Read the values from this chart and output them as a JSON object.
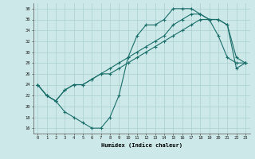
{
  "xlabel": "Humidex (Indice chaleur)",
  "xlim": [
    -0.5,
    23.5
  ],
  "ylim": [
    15,
    39
  ],
  "yticks": [
    16,
    18,
    20,
    22,
    24,
    26,
    28,
    30,
    32,
    34,
    36,
    38
  ],
  "xticks": [
    0,
    1,
    2,
    3,
    4,
    5,
    6,
    7,
    8,
    9,
    10,
    11,
    12,
    13,
    14,
    15,
    16,
    17,
    18,
    19,
    20,
    21,
    22,
    23
  ],
  "bg_color": "#cce8e8",
  "line_color": "#1a6e6a",
  "grid_color": "#aacfcf",
  "line1_x": [
    0,
    1,
    2,
    3,
    4,
    5,
    6,
    7,
    8,
    9,
    10,
    11,
    12,
    13,
    14,
    15,
    16,
    17,
    18,
    19,
    20,
    21,
    22,
    23
  ],
  "line1_y": [
    24,
    22,
    21,
    19,
    18,
    17,
    16,
    16,
    18,
    22,
    29,
    33,
    35,
    35,
    36,
    38,
    38,
    38,
    37,
    36,
    33,
    29,
    28,
    28
  ],
  "line2_x": [
    0,
    1,
    2,
    3,
    4,
    5,
    6,
    7,
    8,
    9,
    10,
    11,
    12,
    13,
    14,
    15,
    16,
    17,
    18,
    19,
    20,
    21,
    22,
    23
  ],
  "line2_y": [
    24,
    22,
    21,
    23,
    24,
    24,
    25,
    26,
    27,
    28,
    29,
    30,
    31,
    32,
    33,
    35,
    36,
    37,
    37,
    36,
    36,
    35,
    29,
    28
  ],
  "line3_x": [
    0,
    1,
    2,
    3,
    4,
    5,
    6,
    7,
    8,
    9,
    10,
    11,
    12,
    13,
    14,
    15,
    16,
    17,
    18,
    19,
    20,
    21,
    22,
    23
  ],
  "line3_y": [
    24,
    22,
    21,
    23,
    24,
    24,
    25,
    26,
    26,
    27,
    28,
    29,
    30,
    31,
    32,
    33,
    34,
    35,
    36,
    36,
    36,
    35,
    27,
    28
  ]
}
